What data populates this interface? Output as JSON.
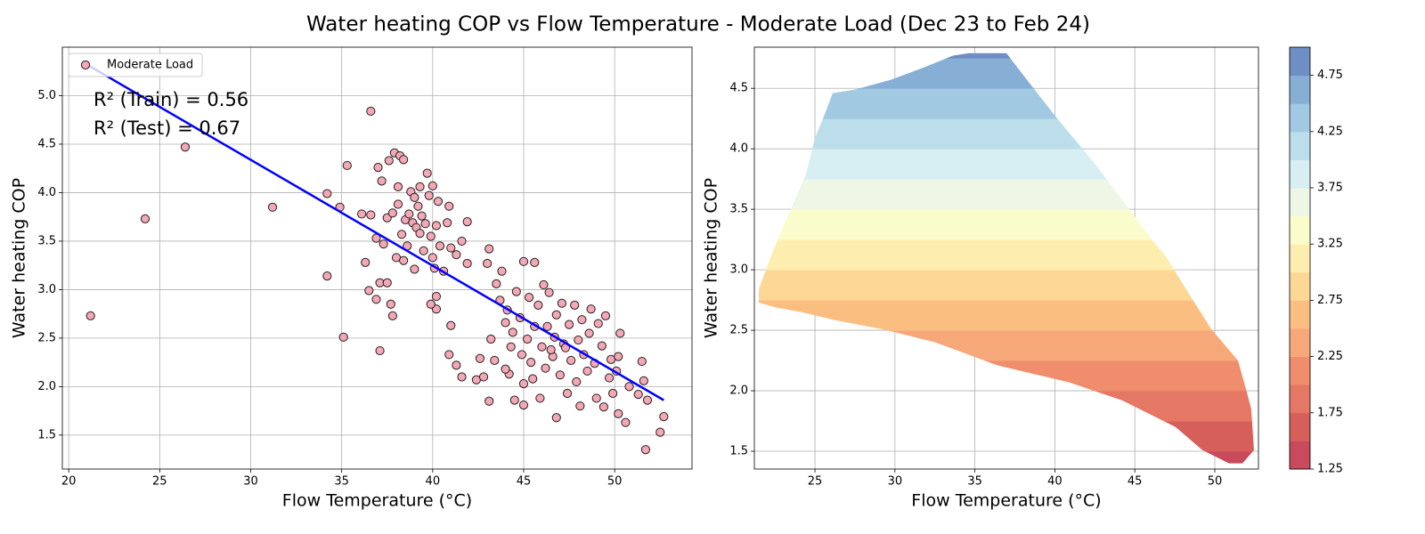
{
  "title": "Water heating COP vs Flow Temperature - Moderate Load (Dec 23 to Feb 24)",
  "chart_data": [
    {
      "type": "scatter",
      "x_label": "Flow Temperature (°C)",
      "y_label": "Water heating COP",
      "xlim": [
        19.65,
        54.25
      ],
      "ylim": [
        1.15,
        5.5
      ],
      "xticks": [
        20,
        25,
        30,
        35,
        40,
        45,
        50
      ],
      "yticks": [
        1.5,
        {
          "value": 2,
          "label": "2.0"
        },
        2.5,
        {
          "value": 3,
          "label": "3.0"
        },
        3.5,
        {
          "value": 4,
          "label": "4.0"
        },
        4.5,
        {
          "value": 5,
          "label": "5.0"
        }
      ],
      "grid": true,
      "legend": "upper left",
      "series": [
        {
          "name": "Moderate Load",
          "color": "#f4a7b4",
          "x": [
            21.2,
            24.2,
            26.4,
            31.2,
            34.2,
            34.2,
            35.1,
            35.3,
            36.6,
            37.1,
            34.9,
            36.1,
            36.3,
            36.5,
            36.6,
            36.9,
            37.0,
            37.1,
            37.2,
            37.3,
            37.5,
            37.6,
            37.7,
            37.8,
            37.8,
            37.9,
            38.0,
            38.1,
            38.1,
            38.2,
            38.3,
            38.4,
            38.5,
            38.6,
            38.7,
            38.8,
            38.9,
            39.0,
            39.0,
            39.1,
            39.2,
            39.3,
            39.3,
            39.4,
            39.5,
            39.6,
            39.7,
            39.8,
            39.9,
            40.0,
            40.0,
            40.1,
            40.2,
            40.2,
            40.3,
            40.4,
            40.6,
            40.8,
            40.9,
            41.0,
            40.9,
            41.0,
            41.3,
            41.6,
            41.9,
            41.9,
            40.2,
            39.9,
            36.9,
            37.5,
            38.4,
            41.3,
            41.6,
            42.4,
            42.6,
            42.8,
            43.0,
            43.1,
            43.1,
            43.2,
            43.4,
            43.5,
            43.7,
            43.8,
            44.0,
            44.1,
            44.2,
            44.3,
            44.4,
            44.5,
            44.6,
            44.8,
            44.9,
            45.0,
            45.0,
            45.0,
            45.2,
            45.3,
            45.4,
            45.5,
            45.6,
            45.6,
            45.8,
            45.9,
            46.0,
            46.1,
            46.2,
            46.3,
            46.4,
            46.6,
            46.7,
            46.8,
            46.8,
            47.0,
            47.1,
            47.2,
            47.4,
            47.5,
            47.6,
            47.8,
            47.9,
            48.0,
            48.1,
            48.2,
            48.3,
            48.5,
            48.6,
            48.7,
            48.9,
            49.0,
            49.1,
            49.3,
            49.4,
            49.5,
            49.7,
            49.8,
            49.9,
            50.1,
            50.2,
            50.3,
            50.6,
            50.8,
            51.3,
            51.5,
            51.6,
            51.7,
            51.8,
            52.5,
            52.7,
            50.2,
            47.3,
            46.5,
            44.0
          ],
          "y": [
            2.73,
            3.73,
            4.47,
            3.85,
            3.99,
            3.14,
            2.51,
            4.28,
            4.84,
            2.37,
            3.85,
            3.78,
            3.28,
            2.99,
            3.77,
            3.53,
            4.26,
            3.07,
            4.12,
            3.47,
            3.74,
            4.33,
            2.85,
            3.79,
            2.73,
            4.41,
            3.33,
            4.06,
            3.88,
            4.38,
            3.57,
            4.34,
            3.72,
            3.45,
            3.78,
            4.01,
            3.69,
            3.95,
            3.21,
            3.64,
            3.86,
            4.06,
            3.58,
            3.76,
            3.4,
            3.68,
            4.2,
            3.97,
            3.55,
            4.07,
            3.33,
            3.22,
            3.66,
            2.93,
            3.91,
            3.45,
            3.19,
            3.69,
            3.86,
            2.63,
            2.33,
            3.43,
            3.36,
            3.5,
            3.7,
            3.27,
            2.8,
            2.85,
            2.9,
            3.07,
            3.3,
            2.22,
            2.1,
            2.07,
            2.29,
            2.1,
            3.27,
            3.42,
            1.85,
            2.49,
            2.27,
            3.06,
            2.89,
            3.19,
            2.66,
            2.79,
            2.13,
            2.41,
            2.56,
            1.86,
            2.98,
            2.71,
            2.33,
            3.29,
            2.03,
            1.81,
            2.49,
            2.92,
            2.25,
            2.08,
            2.62,
            3.28,
            2.84,
            1.88,
            2.41,
            3.05,
            2.19,
            2.62,
            2.97,
            2.31,
            2.51,
            1.68,
            2.74,
            2.12,
            2.86,
            2.44,
            1.93,
            2.64,
            2.27,
            2.84,
            2.05,
            2.48,
            1.8,
            2.69,
            2.33,
            2.16,
            2.55,
            2.8,
            2.24,
            1.88,
            2.65,
            2.42,
            1.79,
            2.73,
            2.09,
            2.28,
            1.93,
            2.16,
            1.72,
            2.55,
            1.63,
            2.0,
            1.92,
            2.26,
            2.06,
            1.35,
            1.86,
            1.53,
            1.69,
            2.31,
            2.4,
            2.38,
            2.18
          ]
        }
      ],
      "fit_line": {
        "color": "#0000ff",
        "x": [
          21.1,
          52.7
        ],
        "y": [
          5.31,
          1.86
        ]
      },
      "annotations": [
        "R² (Train) = 0.56",
        "R² (Test) = 0.67"
      ]
    },
    {
      "type": "contourf",
      "x_label": "Flow Temperature (°C)",
      "y_label": "Water heating COP",
      "xlim": [
        21.21,
        52.73
      ],
      "ylim": [
        1.353,
        4.84
      ],
      "xticks": [
        25,
        30,
        35,
        40,
        45,
        50
      ],
      "yticks": [
        1.5,
        {
          "value": 2,
          "label": "2.0"
        },
        2.5,
        {
          "value": 3,
          "label": "3.0"
        },
        3.5,
        {
          "value": 4,
          "label": "4.0"
        },
        4.5
      ],
      "grid": true,
      "levels": [
        1.25,
        1.5,
        1.75,
        2.0,
        2.25,
        2.5,
        2.75,
        3.0,
        3.25,
        3.5,
        3.75,
        4.0,
        4.25,
        4.5,
        4.75,
        5.0
      ],
      "colors": [
        "#c84a5c",
        "#d75f5b",
        "#e57865",
        "#ef8d6d",
        "#f7a878",
        "#fbbe81",
        "#fcd796",
        "#fdedae",
        "#fbfccb",
        "#eef6e6",
        "#d7eef3",
        "#bcdeeb",
        "#a1cae2",
        "#87aed5",
        "#6f8ec3"
      ],
      "region": {
        "x": [
          34.63,
          36.97,
          38.08,
          40.03,
          42.54,
          44.65,
          45.88,
          46.99,
          48.39,
          49.78,
          51.45,
          52.0,
          52.28,
          52.45,
          51.73,
          50.89,
          49.22,
          47.55,
          44.21,
          40.87,
          36.41,
          32.52,
          29.18,
          26.39,
          24.16,
          22.49,
          21.49,
          21.49,
          22.22,
          22.77,
          23.61,
          24.44,
          25.0,
          25.56,
          26.11,
          27.51,
          29.73,
          31.96,
          33.63
        ],
        "y": [
          4.79,
          4.79,
          4.6,
          4.27,
          3.87,
          3.5,
          3.28,
          3.1,
          2.8,
          2.51,
          2.25,
          1.99,
          1.85,
          1.51,
          1.4,
          1.4,
          1.51,
          1.7,
          1.92,
          2.07,
          2.21,
          2.4,
          2.51,
          2.58,
          2.65,
          2.69,
          2.73,
          2.84,
          3.1,
          3.28,
          3.54,
          3.79,
          4.09,
          4.27,
          4.46,
          4.49,
          4.57,
          4.68,
          4.77
        ]
      },
      "colorbar": {
        "lim": [
          1.25,
          5.0
        ],
        "ticks": [
          1.25,
          1.75,
          2.25,
          2.75,
          3.25,
          3.75,
          4.25,
          4.75
        ]
      }
    }
  ]
}
